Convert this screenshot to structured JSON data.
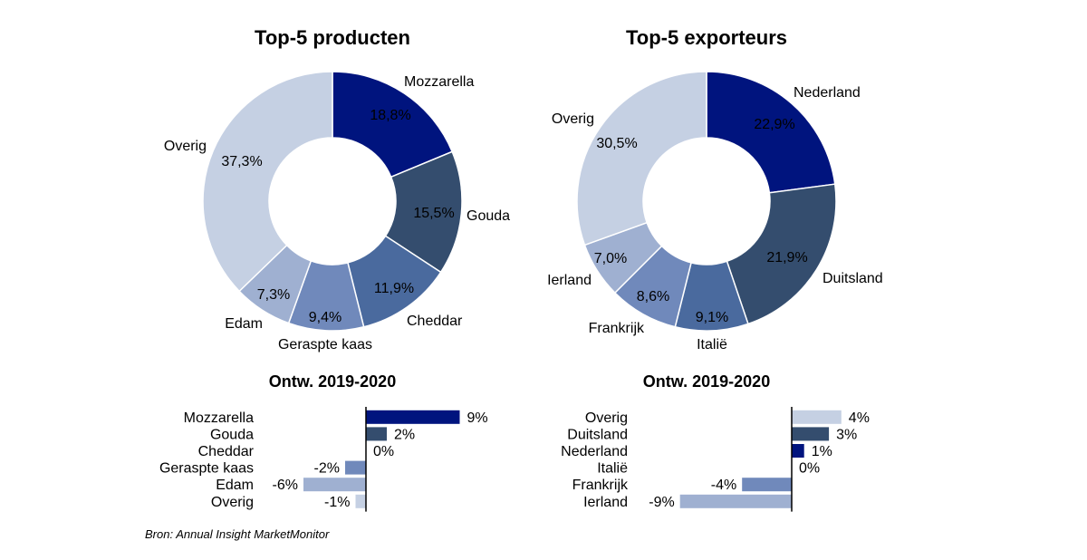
{
  "colors": {
    "navy": "#00147e",
    "slate": "#344d6e",
    "steel": "#4a6a9e",
    "periwinkle": "#7089bb",
    "lavender": "#9fb0d1",
    "pale": "#c5d0e3"
  },
  "source": "Bron: Annual Insight MarketMonitor",
  "chart_data": [
    {
      "type": "pie",
      "title": "Top-5 producten",
      "categories": [
        "Mozzarella",
        "Gouda",
        "Cheddar",
        "Geraspte kaas",
        "Edam",
        "Overig"
      ],
      "values": [
        18.8,
        15.5,
        11.9,
        9.4,
        7.3,
        37.3
      ],
      "value_labels": [
        "18,8%",
        "15,5%",
        "11,9%",
        "9,4%",
        "7,3%",
        "37,3%"
      ],
      "colors": [
        "#00147e",
        "#344d6e",
        "#4a6a9e",
        "#7089bb",
        "#9fb0d1",
        "#c5d0e3"
      ]
    },
    {
      "type": "pie",
      "title": "Top-5 exporteurs",
      "categories": [
        "Nederland",
        "Duitsland",
        "Italië",
        "Frankrijk",
        "Ierland",
        "Overig"
      ],
      "values": [
        22.9,
        21.9,
        9.1,
        8.6,
        7.0,
        30.5
      ],
      "value_labels": [
        "22,9%",
        "21,9%",
        "9,1%",
        "8,6%",
        "7,0%",
        "30,5%"
      ],
      "colors": [
        "#00147e",
        "#344d6e",
        "#4a6a9e",
        "#7089bb",
        "#9fb0d1",
        "#c5d0e3"
      ]
    },
    {
      "type": "bar",
      "orientation": "horizontal",
      "title": "Ontw. 2019-2020",
      "categories": [
        "Mozzarella",
        "Gouda",
        "Cheddar",
        "Geraspte kaas",
        "Edam",
        "Overig"
      ],
      "values": [
        9,
        2,
        0,
        -2,
        -6,
        -1
      ],
      "value_labels": [
        "9%",
        "2%",
        "0%",
        "-2%",
        "-6%",
        "-1%"
      ],
      "colors": [
        "#00147e",
        "#344d6e",
        "#4a6a9e",
        "#7089bb",
        "#9fb0d1",
        "#c5d0e3"
      ]
    },
    {
      "type": "bar",
      "orientation": "horizontal",
      "title": "Ontw. 2019-2020",
      "categories": [
        "Overig",
        "Duitsland",
        "Nederland",
        "Italië",
        "Frankrijk",
        "Ierland"
      ],
      "values": [
        4,
        3,
        1,
        0,
        -4,
        -9
      ],
      "value_labels": [
        "4%",
        "3%",
        "1%",
        "0%",
        "-4%",
        "-9%"
      ],
      "colors": [
        "#c5d0e3",
        "#344d6e",
        "#00147e",
        "#4a6a9e",
        "#7089bb",
        "#9fb0d1"
      ]
    }
  ]
}
